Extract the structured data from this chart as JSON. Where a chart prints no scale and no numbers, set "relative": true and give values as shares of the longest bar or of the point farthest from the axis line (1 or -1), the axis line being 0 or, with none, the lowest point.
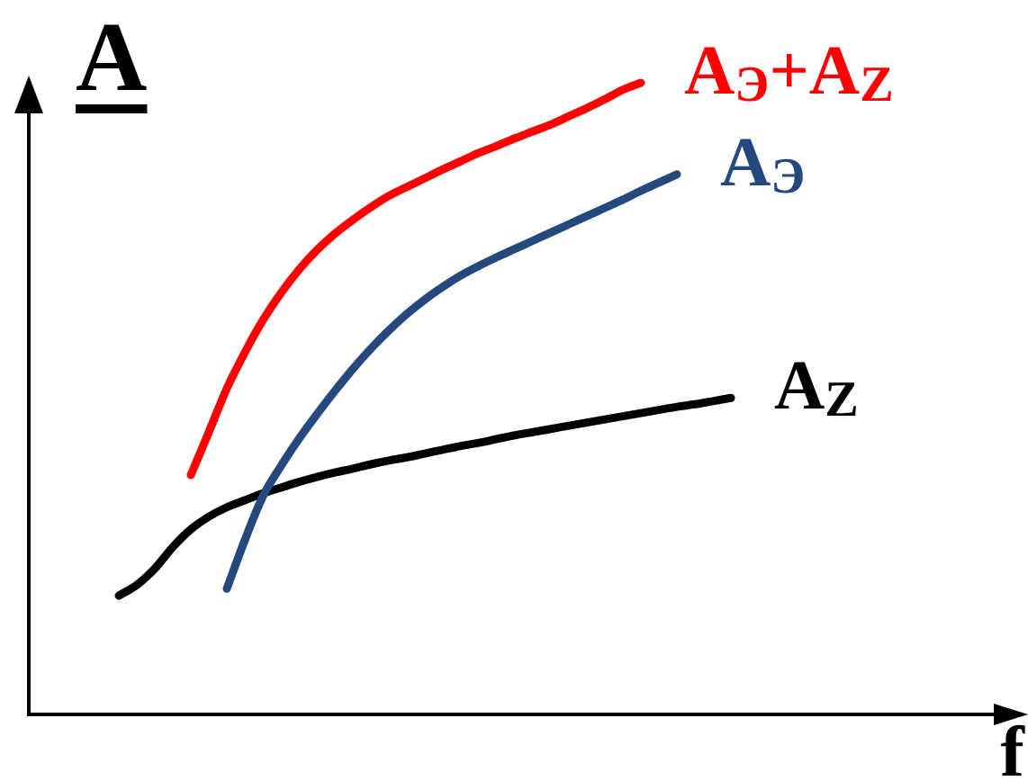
{
  "chart_data": {
    "type": "line",
    "relative": true,
    "ylabel": "A",
    "xlabel": "f",
    "categories": [
      null,
      null,
      null,
      null,
      null,
      null,
      null,
      null,
      null,
      null,
      null,
      null,
      null,
      null,
      null,
      null,
      null,
      null,
      null,
      null,
      null,
      null,
      null,
      null,
      null,
      null,
      null,
      null,
      null,
      null,
      null,
      null,
      null,
      null,
      null,
      null,
      null,
      null,
      null,
      null,
      null,
      null,
      null,
      null,
      null,
      null,
      null,
      null,
      null,
      null,
      null,
      null,
      null,
      null,
      null,
      null
    ],
    "series": [
      {
        "name": "A$_{Э}$+A$_{Z}$",
        "color": "#ff0000",
        "values": [
          null,
          null,
          null,
          null,
          null,
          null,
          null,
          null,
          null,
          0.379,
          0.447,
          0.516,
          0.573,
          0.624,
          0.667,
          0.704,
          0.735,
          0.761,
          0.783,
          0.803,
          0.821,
          0.835,
          0.849,
          0.863,
          0.876,
          0.889,
          0.9,
          0.912,
          0.923,
          0.934,
          0.947,
          0.96,
          0.974,
          0.989,
          1,
          null,
          null,
          null,
          null,
          null,
          null,
          null,
          null,
          null,
          null,
          null,
          null,
          null,
          null,
          null,
          null,
          null,
          null,
          null,
          null,
          null
        ]
      },
      {
        "name": "A$_{Э}$",
        "color": "#23497e",
        "values": [
          null,
          null,
          null,
          null,
          null,
          null,
          null,
          null,
          null,
          null,
          null,
          0.199,
          0.276,
          0.345,
          0.393,
          0.436,
          0.475,
          0.512,
          0.547,
          0.579,
          0.608,
          0.634,
          0.657,
          0.677,
          0.695,
          0.71,
          0.724,
          0.737,
          0.75,
          0.763,
          0.776,
          0.789,
          0.802,
          0.815,
          0.829,
          0.842,
          0.855,
          null,
          null,
          null,
          null,
          null,
          null,
          null,
          null,
          null,
          null,
          null,
          null,
          null,
          null,
          null,
          null,
          null,
          null,
          null
        ]
      },
      {
        "name": "A$_{Z}$",
        "color": "#000000",
        "values": [
          null,
          null,
          null,
          null,
          null,
          0.188,
          0.205,
          0.231,
          0.265,
          0.293,
          0.313,
          0.328,
          0.339,
          0.35,
          0.359,
          0.368,
          0.376,
          0.383,
          0.389,
          0.396,
          0.402,
          0.407,
          0.413,
          0.419,
          0.425,
          0.43,
          0.436,
          0.442,
          0.447,
          0.452,
          0.457,
          0.462,
          0.467,
          0.472,
          0.477,
          0.482,
          0.487,
          0.491,
          0.496,
          0.501,
          null,
          null,
          null,
          null,
          null,
          null,
          null,
          null,
          null,
          null,
          null,
          null,
          null,
          null,
          null,
          null
        ]
      }
    ]
  }
}
